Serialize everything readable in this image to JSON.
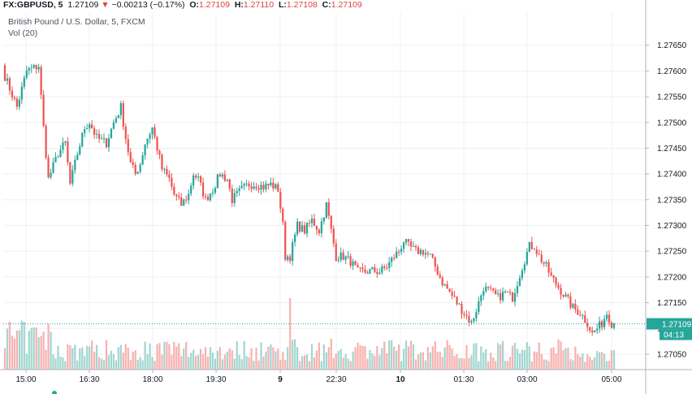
{
  "header": {
    "symbol": "FX:GBPUSD, 5",
    "last": "1.27109",
    "arrow": "▼",
    "change": "−0.00213 (−0.17%)",
    "o_label": "O:",
    "o_value": "1.27109",
    "h_label": "H:",
    "h_value": "1.27110",
    "l_label": "L:",
    "l_value": "1.27108",
    "c_label": "C:",
    "c_value": "1.27109",
    "series_title": "British Pound / U.S. Dollar, 5, FXCM",
    "vol_label": "Vol (20)"
  },
  "colors": {
    "up": "#26a69a",
    "down": "#ef5350",
    "vol_up": "#a3d6d0",
    "vol_down": "#f7b2b0",
    "price_line": "#26a69a",
    "grid": "#eef0f3"
  },
  "price_tag": {
    "value": "1.27109",
    "countdown": "04:13"
  },
  "chart_data": {
    "type": "candlestick",
    "symbol": "GBPUSD",
    "interval": "5",
    "y_axis": {
      "range": [
        1.2702,
        1.277
      ],
      "ticks": [
        "1.27650",
        "1.27600",
        "1.27550",
        "1.27500",
        "1.27450",
        "1.27400",
        "1.27350",
        "1.27300",
        "1.27250",
        "1.27200",
        "1.27150",
        "1.27100",
        "1.27050"
      ]
    },
    "x_axis": {
      "ticks": [
        "15:00",
        "16:30",
        "18:00",
        "19:30",
        "9",
        "22:30",
        "10",
        "01:30",
        "03:00",
        "05:00"
      ],
      "bold_ticks": [
        "9",
        "10"
      ],
      "bar_count": 253
    },
    "path": [
      [
        0,
        1.2759
      ],
      [
        5,
        1.2753
      ],
      [
        9,
        1.276
      ],
      [
        14,
        1.2761
      ],
      [
        16,
        1.2749
      ],
      [
        18,
        1.2739
      ],
      [
        22,
        1.2744
      ],
      [
        25,
        1.2746
      ],
      [
        27,
        1.2738
      ],
      [
        30,
        1.2744
      ],
      [
        33,
        1.2749
      ],
      [
        35,
        1.275
      ],
      [
        38,
        1.2747
      ],
      [
        42,
        1.2746
      ],
      [
        45,
        1.275
      ],
      [
        48,
        1.2753
      ],
      [
        50,
        1.2747
      ],
      [
        52,
        1.2742
      ],
      [
        54,
        1.274
      ],
      [
        56,
        1.2742
      ],
      [
        58,
        1.2746
      ],
      [
        61,
        1.2749
      ],
      [
        63,
        1.2745
      ],
      [
        65,
        1.2741
      ],
      [
        68,
        1.2739
      ],
      [
        70,
        1.2736
      ],
      [
        73,
        1.2734
      ],
      [
        76,
        1.2736
      ],
      [
        78,
        1.274
      ],
      [
        80,
        1.2739
      ],
      [
        83,
        1.2735
      ],
      [
        86,
        1.2737
      ],
      [
        89,
        1.274
      ],
      [
        92,
        1.2739
      ],
      [
        94,
        1.2735
      ],
      [
        96,
        1.2736
      ],
      [
        98,
        1.2737
      ],
      [
        101,
        1.2738
      ],
      [
        104,
        1.2738
      ],
      [
        107,
        1.27375
      ],
      [
        110,
        1.2738
      ],
      [
        113,
        1.2737
      ],
      [
        115,
        1.273
      ],
      [
        116,
        1.2724
      ],
      [
        118,
        1.2724
      ],
      [
        121,
        1.273
      ],
      [
        124,
        1.2729
      ],
      [
        127,
        1.2731
      ],
      [
        130,
        1.2729
      ],
      [
        133,
        1.2734
      ],
      [
        135,
        1.2729
      ],
      [
        137,
        1.2724
      ],
      [
        140,
        1.2724
      ],
      [
        143,
        1.2723
      ],
      [
        146,
        1.2721
      ],
      [
        149,
        1.2721
      ],
      [
        152,
        1.27212
      ],
      [
        155,
        1.2721
      ],
      [
        158,
        1.2722
      ],
      [
        161,
        1.2724
      ],
      [
        163,
        1.2725
      ],
      [
        165,
        1.2727
      ],
      [
        167,
        1.2726
      ],
      [
        170,
        1.2725
      ],
      [
        173,
        1.2725
      ],
      [
        176,
        1.2724
      ],
      [
        178,
        1.2722
      ],
      [
        181,
        1.2719
      ],
      [
        184,
        1.2717
      ],
      [
        187,
        1.2715
      ],
      [
        190,
        1.2713
      ],
      [
        193,
        1.2711
      ],
      [
        196,
        1.2715
      ],
      [
        198,
        1.2718
      ],
      [
        201,
        1.2717
      ],
      [
        204,
        1.2716
      ],
      [
        207,
        1.2717
      ],
      [
        210,
        1.2716
      ],
      [
        212,
        1.2719
      ],
      [
        214,
        1.2722
      ],
      [
        217,
        1.2726
      ],
      [
        219,
        1.2726
      ],
      [
        221,
        1.2724
      ],
      [
        224,
        1.2722
      ],
      [
        226,
        1.272
      ],
      [
        229,
        1.2718
      ],
      [
        232,
        1.2716
      ],
      [
        235,
        1.2714
      ],
      [
        238,
        1.2713
      ],
      [
        241,
        1.2711
      ],
      [
        243,
        1.2709
      ],
      [
        245,
        1.271
      ],
      [
        247,
        1.2711
      ],
      [
        249,
        1.2713
      ],
      [
        251,
        1.2711
      ],
      [
        252,
        1.27109
      ]
    ],
    "volume_range": [
      0,
      100
    ],
    "last_price": 1.27109,
    "current_bar_countdown": "04:13"
  }
}
